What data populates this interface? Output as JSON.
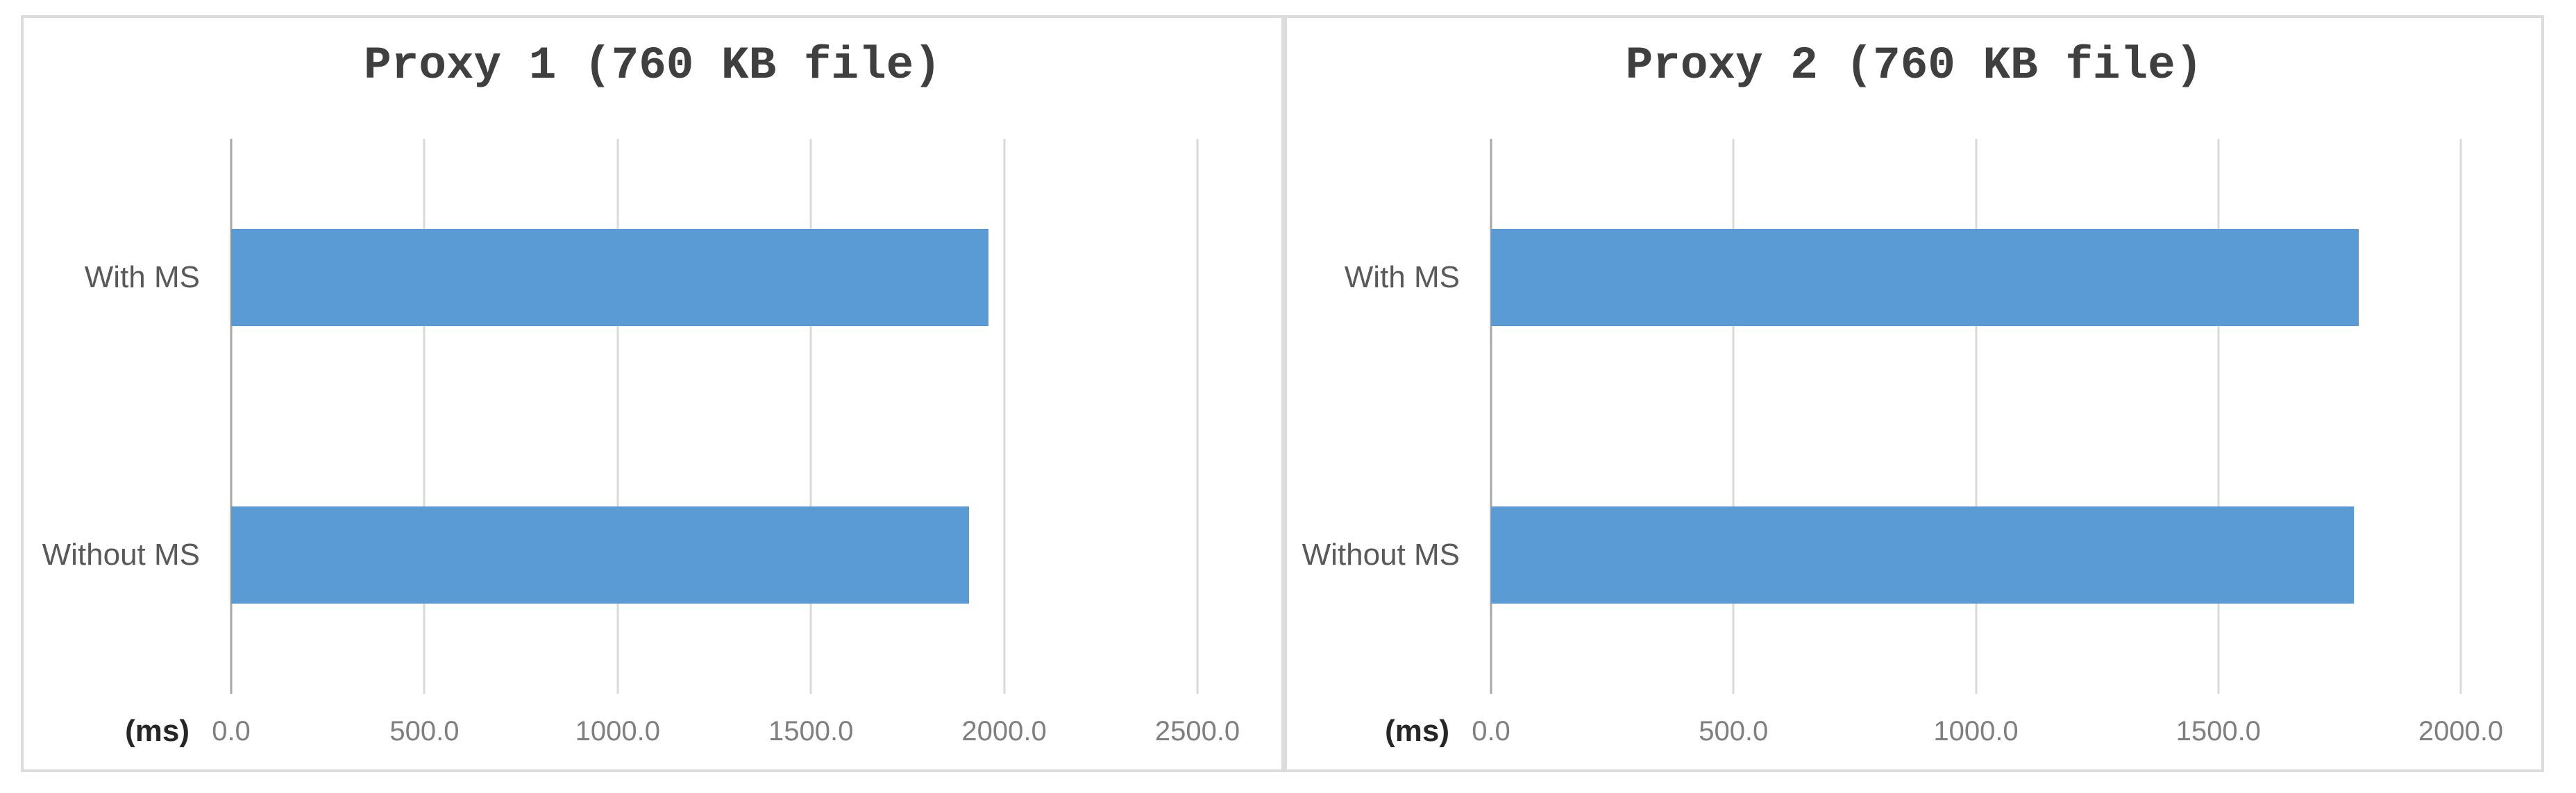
{
  "chart_data": [
    {
      "type": "bar",
      "orientation": "horizontal",
      "title": "Proxy 1 (760 KB file)",
      "xlabel": "(ms)",
      "categories": [
        "With MS",
        "Without MS"
      ],
      "values": [
        1960,
        1910
      ],
      "unit": "ms",
      "xlim": [
        0,
        2500
      ],
      "tick_step": 500,
      "tick_labels": [
        "0.0",
        "500.0",
        "1000.0",
        "1500.0",
        "2000.0",
        "2500.0"
      ],
      "grid": true,
      "legend": false
    },
    {
      "type": "bar",
      "orientation": "horizontal",
      "title": "Proxy 2 (760 KB file)",
      "xlabel": "(ms)",
      "categories": [
        "With MS",
        "Without MS"
      ],
      "values": [
        1790,
        1780
      ],
      "unit": "ms",
      "xlim": [
        0,
        2000
      ],
      "tick_step": 500,
      "tick_labels": [
        "0.0",
        "500.0",
        "1000.0",
        "1500.0",
        "2000.0"
      ],
      "grid": true,
      "legend": false
    }
  ],
  "colors": {
    "bar": "#5B9BD5",
    "gridline": "#D9D9D9",
    "axis_line": "#A6A6A6",
    "panel_border": "#DCDCDC",
    "title_text": "#3F3F3F",
    "category_text": "#595959",
    "tick_text": "#7F7F7F",
    "unit_text": "#262626"
  }
}
